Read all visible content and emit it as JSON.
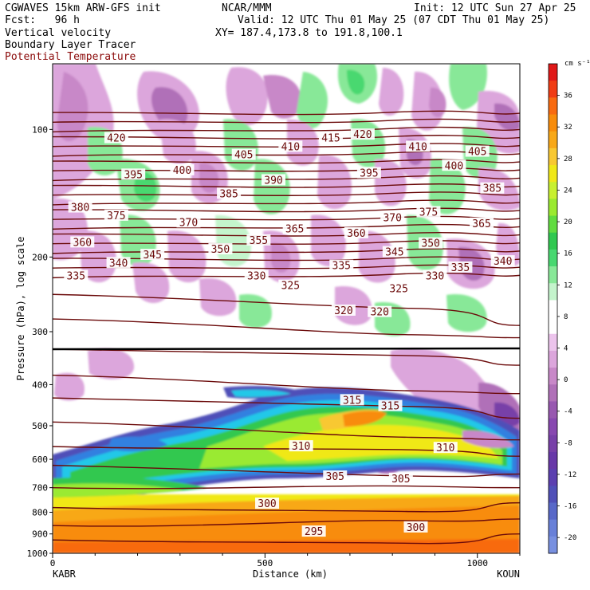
{
  "header": {
    "model": "CGWAVES 15km ARW-GFS init",
    "org": "NCAR/MMM",
    "init": "Init: 12 UTC Sun 27 Apr 25",
    "fcst": "Fcst:   96 h",
    "valid": "Valid: 12 UTC Thu 01 May 25 (07 CDT Thu 01 May 25)",
    "field1": "Vertical velocity",
    "field2": "Boundary Layer Tracer",
    "field3": "Potential Temperature",
    "xy": "XY= 187.4,173.8 to 191.8,100.1"
  },
  "colors": {
    "theta_line": "#6b0a0a",
    "field3_text": "#8b0a0a"
  },
  "chart_data": {
    "type": "heatmap",
    "xlabel": "Distance (km)",
    "ylabel": "Pressure (hPa), log scale",
    "x_ticks": [
      "0",
      "500",
      "1000"
    ],
    "xlim": [
      0,
      1100
    ],
    "ylim": [
      1000,
      70
    ],
    "y_scale": "log",
    "y_ticks": [
      "100",
      "200",
      "300",
      "400",
      "500",
      "600",
      "700",
      "800",
      "900",
      "1000"
    ],
    "endpoint_left": "KABR",
    "endpoint_right": "KOUN",
    "colorbar": {
      "units": "cm s⁻¹",
      "tick_labels": [
        "36",
        "32",
        "28",
        "24",
        "20",
        "16",
        "12",
        "8",
        "4",
        "0",
        "-4",
        "-8",
        "-12",
        "-16",
        "-20"
      ],
      "colors": [
        "#e01818",
        "#f03c14",
        "#f86a10",
        "#f88c0a",
        "#f8a818",
        "#f8c832",
        "#f0e818",
        "#c8f030",
        "#9aea30",
        "#60dc40",
        "#30c850",
        "#48d870",
        "#88e898",
        "#c4f4cc",
        "#ffffff",
        "#ffffff",
        "#ecc4ec",
        "#dca6dc",
        "#c888c8",
        "#b070b8",
        "#9858b0",
        "#8848b0",
        "#7840a8",
        "#6838a8",
        "#5c40b0",
        "#5050b8",
        "#5868c8",
        "#6880d8",
        "#7890e0"
      ]
    },
    "theta_labels": [
      {
        "v": "420",
        "x": 150,
        "p": 105
      },
      {
        "v": "410",
        "x": 560,
        "p": 110
      },
      {
        "v": "415",
        "x": 655,
        "p": 105
      },
      {
        "v": "420",
        "x": 730,
        "p": 103
      },
      {
        "v": "410",
        "x": 860,
        "p": 110
      },
      {
        "v": "405",
        "x": 450,
        "p": 115
      },
      {
        "v": "405",
        "x": 1000,
        "p": 113
      },
      {
        "v": "400",
        "x": 305,
        "p": 125
      },
      {
        "v": "400",
        "x": 945,
        "p": 122
      },
      {
        "v": "395",
        "x": 190,
        "p": 128
      },
      {
        "v": "395",
        "x": 745,
        "p": 127
      },
      {
        "v": "390",
        "x": 520,
        "p": 132
      },
      {
        "v": "385",
        "x": 415,
        "p": 142
      },
      {
        "v": "385",
        "x": 1035,
        "p": 138
      },
      {
        "v": "380",
        "x": 65,
        "p": 153
      },
      {
        "v": "375",
        "x": 150,
        "p": 160
      },
      {
        "v": "375",
        "x": 885,
        "p": 157
      },
      {
        "v": "370",
        "x": 320,
        "p": 166
      },
      {
        "v": "370",
        "x": 800,
        "p": 162
      },
      {
        "v": "365",
        "x": 570,
        "p": 172
      },
      {
        "v": "365",
        "x": 1010,
        "p": 167
      },
      {
        "v": "360",
        "x": 70,
        "p": 185
      },
      {
        "v": "360",
        "x": 715,
        "p": 176
      },
      {
        "v": "355",
        "x": 485,
        "p": 183
      },
      {
        "v": "350",
        "x": 395,
        "p": 192
      },
      {
        "v": "350",
        "x": 890,
        "p": 186
      },
      {
        "v": "345",
        "x": 235,
        "p": 198
      },
      {
        "v": "345",
        "x": 805,
        "p": 195
      },
      {
        "v": "340",
        "x": 155,
        "p": 207
      },
      {
        "v": "340",
        "x": 1060,
        "p": 205
      },
      {
        "v": "335",
        "x": 55,
        "p": 222
      },
      {
        "v": "335",
        "x": 680,
        "p": 210
      },
      {
        "v": "335",
        "x": 960,
        "p": 212
      },
      {
        "v": "330",
        "x": 480,
        "p": 222
      },
      {
        "v": "330",
        "x": 900,
        "p": 222
      },
      {
        "v": "325",
        "x": 560,
        "p": 234
      },
      {
        "v": "325",
        "x": 815,
        "p": 238
      },
      {
        "v": "320",
        "x": 685,
        "p": 268
      },
      {
        "v": "320",
        "x": 770,
        "p": 270
      },
      {
        "v": "315",
        "x": 705,
        "p": 436
      },
      {
        "v": "315",
        "x": 795,
        "p": 450
      },
      {
        "v": "310",
        "x": 585,
        "p": 560
      },
      {
        "v": "310",
        "x": 925,
        "p": 565
      },
      {
        "v": "305",
        "x": 665,
        "p": 660
      },
      {
        "v": "305",
        "x": 820,
        "p": 668
      },
      {
        "v": "300",
        "x": 505,
        "p": 765
      },
      {
        "v": "300",
        "x": 855,
        "p": 870
      },
      {
        "v": "295",
        "x": 615,
        "p": 890
      }
    ]
  }
}
